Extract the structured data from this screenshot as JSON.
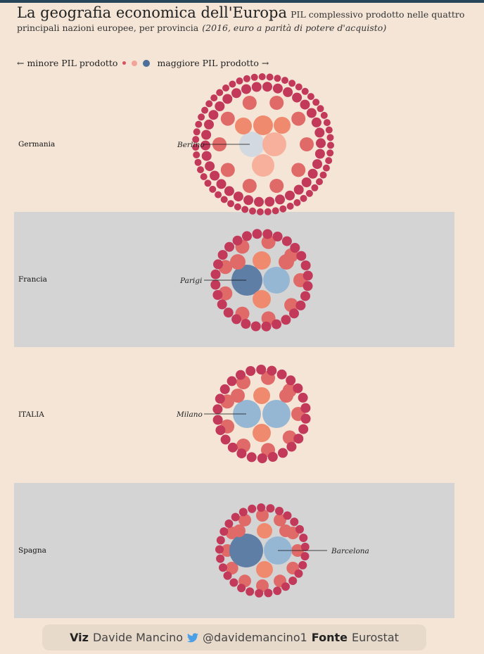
{
  "header": {
    "title": "La geografia economica dell'Europa",
    "subtitle": "PIL complessivo prodotto nelle quattro principali nazioni europee, per provincia",
    "subtitle_note": "(2016, euro a parità di potere d'acquisto)"
  },
  "legend": {
    "left_label": "← minore PIL prodotto",
    "right_label": "maggiore PIL prodotto →",
    "colors": [
      "#d9515f",
      "#f2a49a",
      "#4d6f99"
    ]
  },
  "colors": {
    "background": "#f4e5d7",
    "panel_shaded": "#d4d4d4",
    "small": "#c2395a",
    "medium": "#e06a68",
    "large": "#f08a6e",
    "larger": "#f7b09c",
    "top_light": "#d2d9e0",
    "top_blue": "#96b7d4",
    "top_dark": "#5e7ea6"
  },
  "chart_data": {
    "type": "circle-packing",
    "encoding": "circle area proportional to provincial GDP; color scale from small (dark red) to large (blue)",
    "countries": [
      {
        "name": "Germania",
        "highlight": "Berlino",
        "highlight_tier": "top_light",
        "clusters": [
          {
            "tier": "top_light",
            "count": 1
          },
          {
            "tier": "larger",
            "count": 2
          },
          {
            "tier": "large",
            "count": 3
          },
          {
            "tier": "medium",
            "count": 30
          },
          {
            "tier": "small",
            "count": 360
          }
        ]
      },
      {
        "name": "Francia",
        "highlight": "Parigi",
        "highlight_tier": "top_dark",
        "clusters": [
          {
            "tier": "top_dark",
            "count": 1
          },
          {
            "tier": "top_blue",
            "count": 1
          },
          {
            "tier": "large",
            "count": 3
          },
          {
            "tier": "medium",
            "count": 20
          },
          {
            "tier": "small",
            "count": 70
          }
        ]
      },
      {
        "name": "ITALIA",
        "highlight": "Milano",
        "highlight_tier": "top_blue",
        "clusters": [
          {
            "tier": "top_blue",
            "count": 2
          },
          {
            "tier": "large",
            "count": 2
          },
          {
            "tier": "medium",
            "count": 20
          },
          {
            "tier": "small",
            "count": 80
          }
        ]
      },
      {
        "name": "Spagna",
        "highlight": "Barcelona",
        "highlight_tier": "top_blue",
        "clusters": [
          {
            "tier": "top_dark",
            "count": 1
          },
          {
            "tier": "top_blue",
            "count": 1
          },
          {
            "tier": "large",
            "count": 2
          },
          {
            "tier": "medium",
            "count": 14
          },
          {
            "tier": "small",
            "count": 35
          }
        ]
      }
    ]
  },
  "footer": {
    "viz_label": "Viz",
    "author": "Davide Mancino",
    "twitter_icon": "twitter-bird-icon",
    "handle": "@davidemancino1",
    "source_label": "Fonte",
    "source": "Eurostat"
  }
}
